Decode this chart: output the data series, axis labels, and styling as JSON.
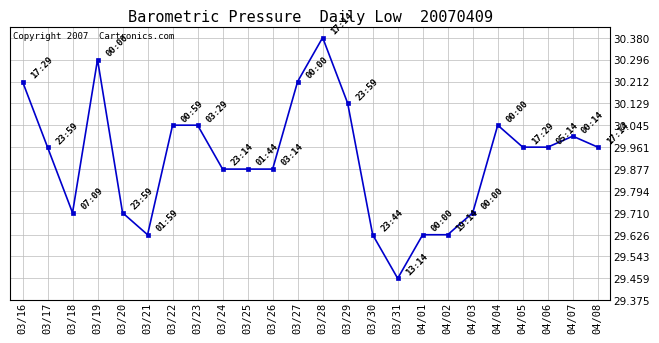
{
  "title": "Barometric Pressure  Daily Low  20070409",
  "copyright": "Copyright 2007  Cartronics.com",
  "x_labels": [
    "03/16",
    "03/17",
    "03/18",
    "03/19",
    "03/20",
    "03/21",
    "03/22",
    "03/23",
    "03/24",
    "03/25",
    "03/26",
    "03/27",
    "03/28",
    "03/29",
    "03/30",
    "03/31",
    "04/01",
    "04/02",
    "04/03",
    "04/04",
    "04/05",
    "04/06",
    "04/07",
    "04/08"
  ],
  "y_values": [
    30.212,
    29.961,
    29.71,
    30.296,
    29.71,
    29.626,
    30.045,
    30.045,
    29.877,
    29.877,
    29.877,
    30.212,
    30.38,
    30.129,
    29.626,
    29.459,
    29.626,
    29.626,
    29.71,
    30.045,
    29.961,
    29.961,
    30.003,
    29.961
  ],
  "annotations": [
    "17:29",
    "23:59",
    "07:09",
    "00:00",
    "23:59",
    "01:59",
    "00:59",
    "03:29",
    "23:14",
    "01:44",
    "03:14",
    "00:00",
    "17:14",
    "23:59",
    "23:44",
    "13:14",
    "00:00",
    "19:14",
    "00:00",
    "00:00",
    "17:29",
    "05:14",
    "00:14",
    "17:14"
  ],
  "line_color": "#0000cc",
  "marker_color": "#0000cc",
  "grid_color": "#bbbbbb",
  "background_color": "#ffffff",
  "text_color": "#000000",
  "ylim_min": 29.375,
  "ylim_max": 30.422,
  "yticks": [
    29.375,
    29.459,
    29.543,
    29.626,
    29.71,
    29.794,
    29.877,
    29.961,
    30.045,
    30.129,
    30.212,
    30.296,
    30.38
  ],
  "title_fontsize": 11,
  "annotation_fontsize": 6.5,
  "copyright_fontsize": 6.5,
  "tick_fontsize": 7.5
}
